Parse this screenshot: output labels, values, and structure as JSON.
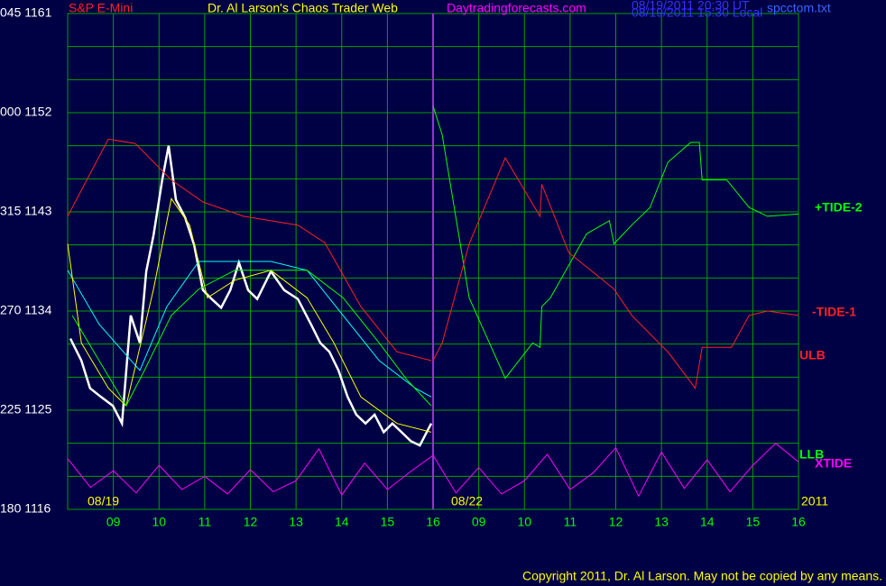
{
  "chart_data": {
    "type": "line",
    "title": "S&P E-Mini",
    "annotations": [
      {
        "text": "Dr. Al Larson's Chaos Trader Web",
        "color": "#ffff00"
      },
      {
        "text": "Daytradingforecasts.com",
        "color": "#ff00ff"
      },
      {
        "text": "08/19/2011 20:30 UT",
        "color": "#3333ff"
      },
      {
        "text": "08/19/2011 15:30 Local",
        "color": "#3333ff"
      },
      {
        "text": "spcctom.txt",
        "color": "#3366ff"
      },
      {
        "text": "08/19",
        "color": "#ffff00"
      },
      {
        "text": "08/22",
        "color": "#ffff00"
      },
      {
        "text": "2011",
        "color": "#ffff00"
      },
      {
        "text": "Copyright 2011, Dr. Al Larson. May not be copied by any means.",
        "color": "#ffff00"
      }
    ],
    "xlim": [
      8,
      24
    ],
    "xticks": [
      {
        "value": 9,
        "label": "09"
      },
      10,
      11,
      12,
      13,
      14,
      15,
      16,
      {
        "value": 17,
        "label": "09"
      },
      {
        "value": 18,
        "label": "10"
      },
      {
        "value": 19,
        "label": "11"
      },
      {
        "value": 20,
        "label": "12"
      },
      {
        "value": 21,
        "label": "13"
      },
      {
        "value": 22,
        "label": "14"
      },
      {
        "value": 23,
        "label": "15"
      },
      {
        "value": 24,
        "label": "16"
      }
    ],
    "ylim": [
      1116,
      1161
    ],
    "yticks": [
      {
        "value": 1116,
        "label": "180 1116"
      },
      {
        "value": 1125,
        "label": "225 1125"
      },
      {
        "value": 1134,
        "label": "270 1134"
      },
      {
        "value": 1143,
        "label": "315 1143"
      },
      {
        "value": 1152,
        "label": "000 1152"
      },
      {
        "value": 1161,
        "label": "045 1161"
      }
    ],
    "minor_yticks": [
      1119,
      1122,
      1128,
      1131,
      1137,
      1140,
      1146,
      1149,
      1155,
      1158
    ],
    "grid": true,
    "grid_color": "#00a000",
    "series": [
      {
        "color": "#ffffff",
        "x": [
          8.06,
          8.3,
          8.49,
          8.73,
          8.99,
          9.19,
          9.38,
          9.58,
          9.72,
          9.88,
          10.07,
          10.21,
          10.37,
          10.57,
          10.77,
          10.96,
          11.15,
          11.36,
          11.56,
          11.75,
          11.95,
          12.15,
          12.45,
          12.74,
          13.04,
          13.34,
          13.53,
          13.73,
          13.93,
          14.13,
          14.32,
          14.52,
          14.72,
          14.92,
          15.11,
          15.31,
          15.51,
          15.71,
          15.96
        ],
        "values": [
          1131.5,
          1129.5,
          1127.0,
          1126.2,
          1125.4,
          1123.8,
          1133.6,
          1131.1,
          1137.6,
          1140.9,
          1145.9,
          1149.0,
          1144.1,
          1142.5,
          1140.0,
          1135.9,
          1135.1,
          1134.3,
          1135.9,
          1138.4,
          1135.9,
          1135.1,
          1137.6,
          1135.9,
          1135.1,
          1132.7,
          1131.1,
          1130.3,
          1128.6,
          1126.2,
          1124.6,
          1123.8,
          1124.6,
          1123.0,
          1123.8,
          1123.0,
          1122.2,
          1121.8,
          1123.8
        ]
      },
      {
        "color": "#00ffff",
        "x": [
          8.0,
          8.69,
          9.58,
          10.17,
          10.87,
          11.66,
          12.45,
          13.24,
          14.03,
          14.82,
          15.61,
          15.96
        ],
        "values": [
          1137.7,
          1132.8,
          1128.6,
          1134.4,
          1138.5,
          1138.5,
          1138.5,
          1137.7,
          1133.6,
          1129.5,
          1127.0,
          1126.2
        ]
      },
      {
        "color": "#ffff00",
        "x": [
          8.0,
          8.3,
          8.89,
          9.28,
          9.88,
          10.27,
          10.67,
          11.06,
          11.66,
          12.45,
          13.24,
          13.83,
          14.42,
          15.21,
          15.96
        ],
        "values": [
          1140.1,
          1131.1,
          1127.0,
          1125.4,
          1136.0,
          1144.2,
          1141.8,
          1135.2,
          1136.8,
          1137.7,
          1135.2,
          1131.1,
          1126.2,
          1123.8,
          1123.0
        ]
      },
      {
        "name": "ULB",
        "color": "#ff2020",
        "x": [
          8.0,
          8.89,
          9.48,
          10.27,
          10.96,
          11.85,
          13.04,
          13.63,
          14.42,
          15.21,
          15.96
        ],
        "values": [
          1142.6,
          1149.6,
          1149.2,
          1145.9,
          1143.9,
          1142.6,
          1141.8,
          1140.2,
          1134.4,
          1130.3,
          1129.5
        ]
      },
      {
        "name": "LLB",
        "color": "#00ff00",
        "x": [
          8.1,
          8.69,
          9.28,
          9.68,
          10.27,
          10.87,
          11.66,
          12.45,
          13.24,
          14.03,
          14.82,
          15.42,
          15.96
        ],
        "values": [
          1133.6,
          1129.5,
          1125.4,
          1128.6,
          1133.6,
          1136.0,
          1137.7,
          1137.7,
          1137.7,
          1135.2,
          1131.1,
          1127.8,
          1125.4
        ]
      },
      {
        "name": "+TIDE-2",
        "color": "#00ff00",
        "x": [
          16.0,
          16.2,
          16.79,
          17.58,
          18.18,
          18.34,
          18.38,
          18.57,
          19.36,
          19.86,
          19.96,
          20.35,
          20.75,
          21.14,
          21.64,
          21.83,
          21.89,
          22.43,
          22.92,
          23.32,
          24.0
        ],
        "values": [
          1152.6,
          1150.0,
          1135.2,
          1127.9,
          1131.1,
          1130.7,
          1134.4,
          1135.2,
          1141.0,
          1142.2,
          1140.1,
          1141.8,
          1143.4,
          1147.5,
          1149.3,
          1149.3,
          1145.9,
          1145.9,
          1143.4,
          1142.6,
          1142.8
        ]
      },
      {
        "name": "-TIDE-1",
        "color": "#ff2020",
        "x": [
          16.0,
          16.2,
          16.79,
          17.58,
          18.34,
          18.38,
          18.97,
          19.96,
          20.35,
          21.14,
          21.74,
          21.89,
          22.53,
          22.92,
          23.32,
          24.0
        ],
        "values": [
          1129.5,
          1131.1,
          1140.1,
          1147.9,
          1142.6,
          1145.5,
          1139.3,
          1136.0,
          1133.6,
          1130.3,
          1127.0,
          1130.7,
          1130.7,
          1133.6,
          1134.0,
          1133.6
        ]
      },
      {
        "name": "XTIDE",
        "color": "#ff00ff",
        "x": [
          8.0,
          8.5,
          9.0,
          9.5,
          10.0,
          10.5,
          11.0,
          11.5,
          12.0,
          12.5,
          13.0,
          13.5,
          14.0,
          14.5,
          15.0,
          15.5,
          16.0,
          16.5,
          17.0,
          17.5,
          18.0,
          18.5,
          19.0,
          19.5,
          20.0,
          20.5,
          21.0,
          21.5,
          22.0,
          22.5,
          23.0,
          23.5,
          24.0
        ],
        "values": [
          1120.6,
          1118.0,
          1119.5,
          1117.5,
          1120.0,
          1117.8,
          1119.0,
          1117.4,
          1119.6,
          1117.6,
          1118.6,
          1121.5,
          1117.3,
          1120.2,
          1117.8,
          1119.4,
          1120.9,
          1117.5,
          1119.8,
          1117.4,
          1118.6,
          1121.0,
          1117.8,
          1119.3,
          1121.6,
          1117.2,
          1121.2,
          1117.9,
          1120.5,
          1117.6,
          1120.0,
          1122.0,
          1120.3
        ]
      }
    ]
  }
}
